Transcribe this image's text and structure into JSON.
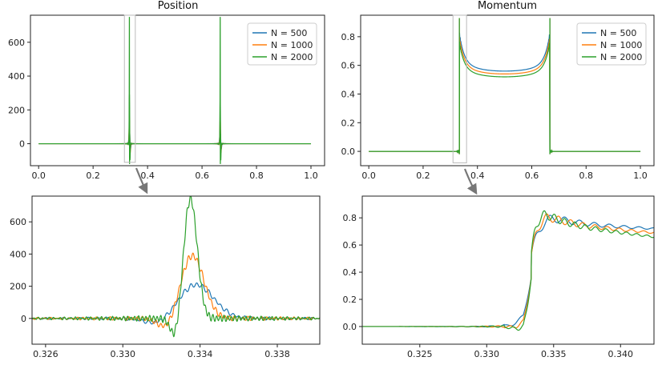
{
  "chart_data": [
    {
      "type": "line",
      "title": "Position",
      "xlim": [
        -0.03,
        1.05
      ],
      "ylim": [
        -130,
        760
      ],
      "xticks": [
        0.0,
        0.2,
        0.4,
        0.6,
        0.8,
        1.0
      ],
      "xtick_labels": [
        "0.0",
        "0.2",
        "0.4",
        "0.6",
        "0.8",
        "1.0"
      ],
      "yticks": [
        0,
        200,
        400,
        600
      ],
      "ytick_labels": [
        "0",
        "200",
        "400",
        "600"
      ],
      "legend": "top-right",
      "inset_box": {
        "x": [
          0.315,
          0.355
        ],
        "y": [
          -110,
          760
        ]
      },
      "series": [
        {
          "name": "N = 500",
          "color": "#1f77b4",
          "x": [
            0.0,
            1.0
          ],
          "y": [
            0,
            0
          ]
        },
        {
          "name": "N = 1000",
          "color": "#ff7f0e",
          "x": [
            0.0,
            1.0
          ],
          "y": [
            0,
            0
          ]
        },
        {
          "name": "N = 2000",
          "color": "#2ca02c",
          "x": [
            0.0,
            1.0
          ],
          "y": [
            0,
            0
          ],
          "spikes": [
            {
              "x": 0.3333,
              "max": 750,
              "min": -120
            },
            {
              "x": 0.6667,
              "max": 750,
              "min": -120
            }
          ]
        }
      ]
    },
    {
      "type": "line",
      "title": "Momentum",
      "xlim": [
        -0.03,
        1.05
      ],
      "ylim": [
        -0.1,
        0.95
      ],
      "xticks": [
        0.0,
        0.2,
        0.4,
        0.6,
        0.8,
        1.0
      ],
      "xtick_labels": [
        "0.0",
        "0.2",
        "0.4",
        "0.6",
        "0.8",
        "1.0"
      ],
      "yticks": [
        0.0,
        0.2,
        0.4,
        0.6,
        0.8
      ],
      "ytick_labels": [
        "0.0",
        "0.2",
        "0.4",
        "0.6",
        "0.8"
      ],
      "legend": "top-right",
      "inset_box": {
        "x": [
          0.31,
          0.36
        ],
        "y": [
          -0.08,
          0.95
        ]
      },
      "series": [
        {
          "name": "N = 500",
          "color": "#1f77b4",
          "mid_value": 0.56,
          "edge_value": 0.78
        },
        {
          "name": "N = 1000",
          "color": "#ff7f0e",
          "mid_value": 0.54,
          "edge_value": 0.75
        },
        {
          "name": "N = 2000",
          "color": "#2ca02c",
          "mid_value": 0.52,
          "edge_value": 0.72
        }
      ]
    },
    {
      "type": "line",
      "title": "",
      "xlim": [
        0.3253,
        0.3402
      ],
      "ylim": [
        -160,
        760
      ],
      "xticks": [
        0.326,
        0.33,
        0.334,
        0.338
      ],
      "xtick_labels": [
        "0.326",
        "0.330",
        "0.334",
        "0.338"
      ],
      "yticks": [
        0,
        200,
        400,
        600
      ],
      "ytick_labels": [
        "0",
        "200",
        "400",
        "600"
      ],
      "series": [
        {
          "name": "N = 500",
          "color": "#1f77b4",
          "peak_x": 0.3338,
          "peak_y": 210
        },
        {
          "name": "N = 1000",
          "color": "#ff7f0e",
          "peak_x": 0.3336,
          "peak_y": 390
        },
        {
          "name": "N = 2000",
          "color": "#2ca02c",
          "peak_x": 0.3335,
          "peak_y": 745
        }
      ]
    },
    {
      "type": "line",
      "title": "",
      "xlim": [
        0.3207,
        0.3425
      ],
      "ylim": [
        -0.13,
        0.96
      ],
      "xticks": [
        0.325,
        0.33,
        0.335,
        0.34
      ],
      "xtick_labels": [
        "0.325",
        "0.330",
        "0.335",
        "0.340"
      ],
      "yticks": [
        0.0,
        0.2,
        0.4,
        0.6,
        0.8
      ],
      "ytick_labels": [
        "0.0",
        "0.2",
        "0.4",
        "0.6",
        "0.8"
      ],
      "series": [
        {
          "name": "N = 500",
          "color": "#1f77b4",
          "peak_y": 0.92,
          "end_y": 0.72
        },
        {
          "name": "N = 1000",
          "color": "#ff7f0e",
          "peak_y": 0.91,
          "end_y": 0.69
        },
        {
          "name": "N = 2000",
          "color": "#2ca02c",
          "peak_y": 0.93,
          "end_y": 0.66
        }
      ]
    }
  ]
}
